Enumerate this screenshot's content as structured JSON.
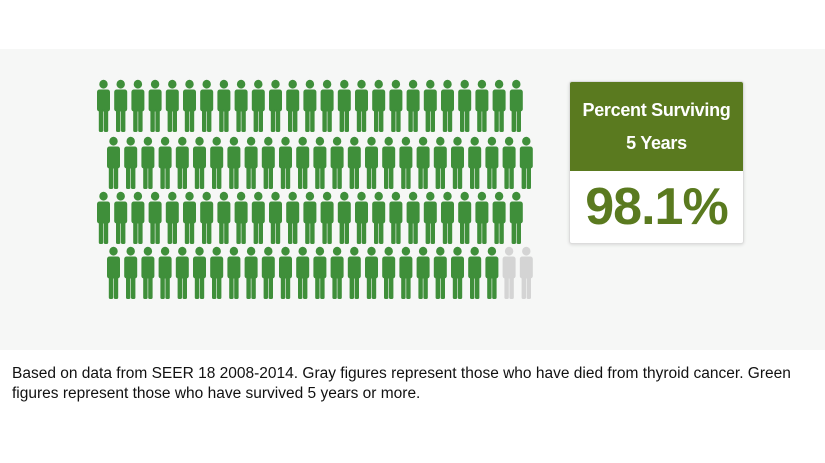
{
  "chart_data": {
    "type": "pictograph",
    "total_figures": 100,
    "survived_percent": 98.1,
    "died_percent": 1.9,
    "colors": {
      "survived": "#3f8f3a",
      "died": "#d4d4d4"
    }
  },
  "stat_card": {
    "title_line1": "Percent Surviving",
    "title_line2": "5 Years",
    "value": "98.1%",
    "header_color": "#5a7a1f"
  },
  "caption": "Based on data from SEER 18 2008-2014. Gray figures represent those who have died from thyroid cancer. Green figures represent those who have survived 5 years or more."
}
